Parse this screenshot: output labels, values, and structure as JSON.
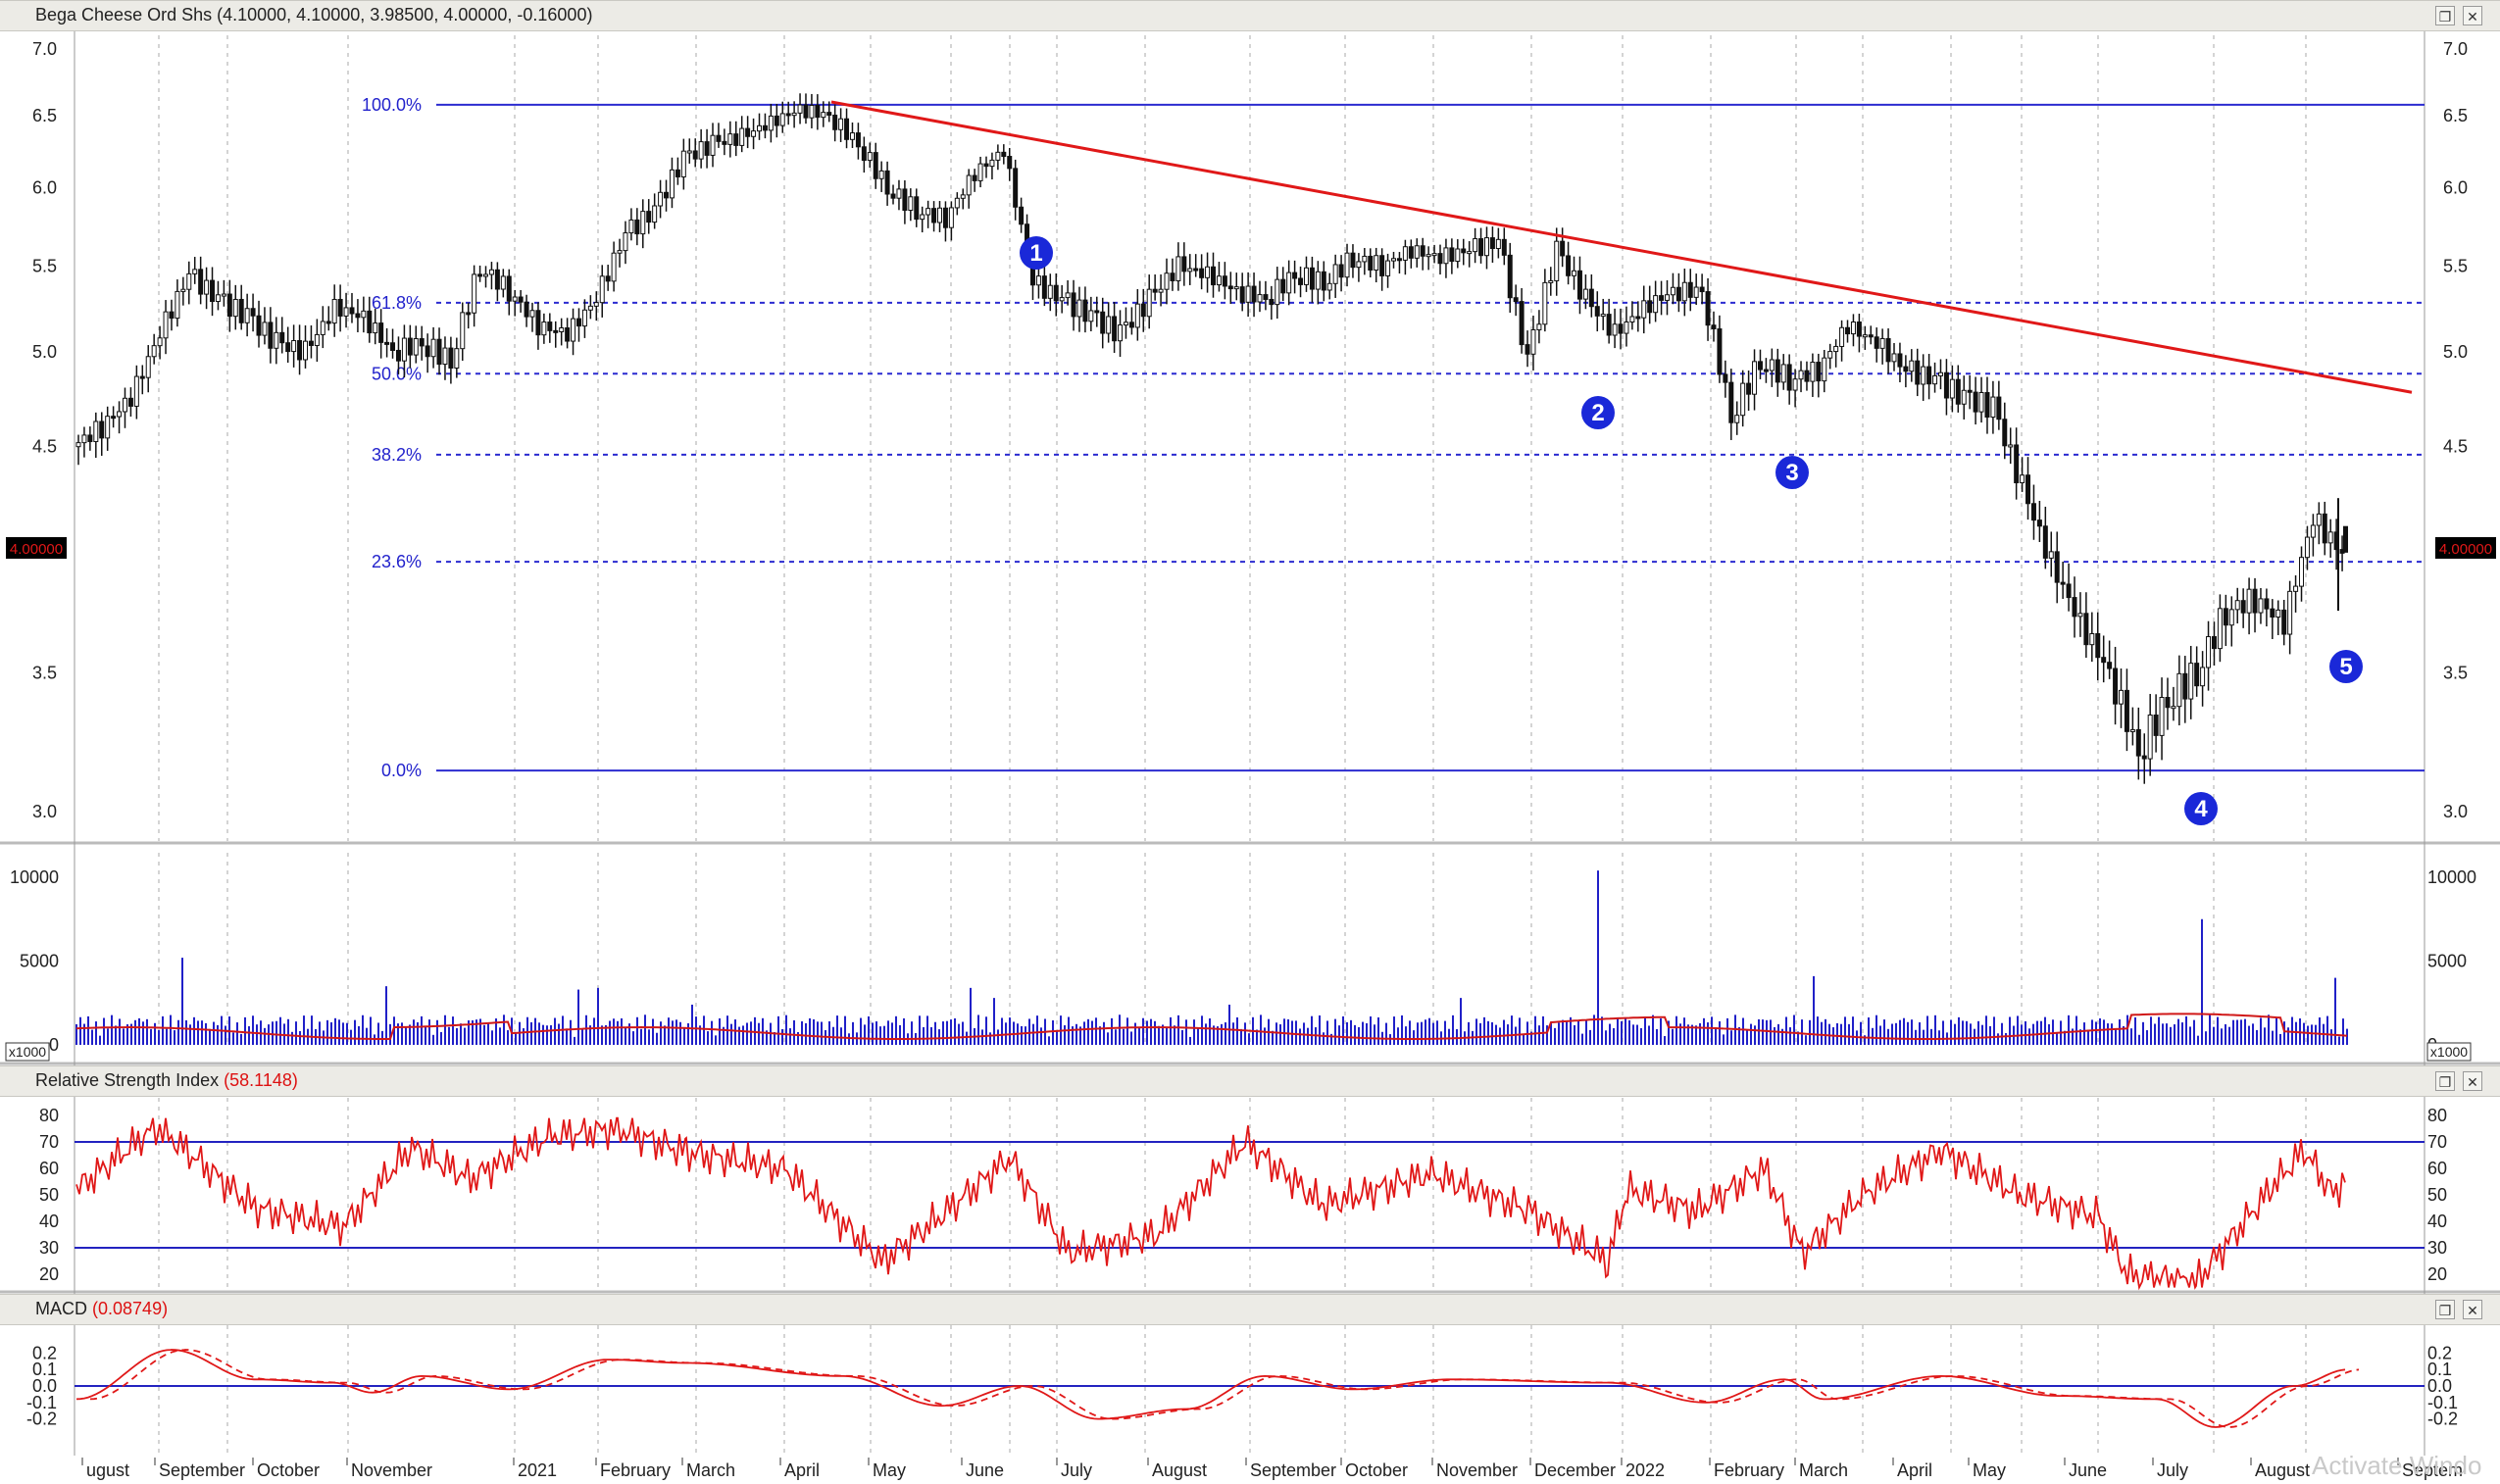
{
  "colors": {
    "candle": "#111111",
    "fib": "#2b2bd0",
    "trend": "#e01818",
    "volume": "#2020c8",
    "ma": "#d01818",
    "rsi": "#e01818",
    "band": "#2323c0",
    "marker": "#1a28d8",
    "price_box": "#000000",
    "price_text": "#e01818"
  },
  "price_panel": {
    "title": "Bega Cheese Ord Shs",
    "ohlc": "(4.10000, 4.10000, 3.98500, 4.00000, -0.16000)",
    "price_tag": "4.00000",
    "y_ticks": [
      "7.0",
      "6.5",
      "6.0",
      "5.5",
      "5.0",
      "4.5",
      "3.5",
      "3.0"
    ],
    "fib_labels": [
      "100.0%",
      "61.8%",
      "50.0%",
      "38.2%",
      "23.6%",
      "0.0%"
    ],
    "wave_markers": [
      "1",
      "2",
      "3",
      "4",
      "5"
    ]
  },
  "volume_panel": {
    "y_ticks": [
      "10000",
      "5000",
      "0"
    ],
    "scale_label": "x1000"
  },
  "rsi_panel": {
    "title": "Relative Strength Index",
    "value": "(58.1148)",
    "y_ticks": [
      "80",
      "70",
      "60",
      "50",
      "40",
      "30",
      "20"
    ]
  },
  "macd_panel": {
    "title": "MACD",
    "value": "(0.08749)",
    "y_ticks": [
      "0.2",
      "0.1",
      "0.0",
      "-0.1",
      "-0.2"
    ]
  },
  "x_axis": {
    "labels": [
      "ugust",
      "September",
      "October",
      "November",
      "2021",
      "February",
      "March",
      "April",
      "May",
      "June",
      "July",
      "August",
      "September",
      "October",
      "November",
      "December",
      "2022",
      "February",
      "March",
      "April",
      "May",
      "June",
      "July",
      "August",
      "Septem"
    ]
  },
  "watermark": "Activate Windo",
  "chart_data": {
    "type": "candlestick",
    "title": "Bega Cheese Ord Shs",
    "fib_levels": [
      {
        "label": "100.0%",
        "price": 6.58
      },
      {
        "label": "61.8%",
        "price": 5.28
      },
      {
        "label": "50.0%",
        "price": 4.88
      },
      {
        "label": "38.2%",
        "price": 4.46
      },
      {
        "label": "23.6%",
        "price": 3.96
      },
      {
        "label": "0.0%",
        "price": 3.14
      }
    ],
    "close_series": [
      4.5,
      4.6,
      4.75,
      5.1,
      5.45,
      5.3,
      5.2,
      5.05,
      5.0,
      5.25,
      5.2,
      5.0,
      5.05,
      4.95,
      5.5,
      5.35,
      5.15,
      5.1,
      5.3,
      5.7,
      5.85,
      6.2,
      6.3,
      6.35,
      6.45,
      6.55,
      6.5,
      6.3,
      6.0,
      5.85,
      5.8,
      6.1,
      6.25,
      5.4,
      5.3,
      5.2,
      5.1,
      5.3,
      5.5,
      5.45,
      5.35,
      5.3,
      5.45,
      5.4,
      5.55,
      5.5,
      5.6,
      5.55,
      5.6,
      5.65,
      4.95,
      5.6,
      5.3,
      5.1,
      5.25,
      5.35,
      5.35,
      4.65,
      4.95,
      4.85,
      4.9,
      5.15,
      5.05,
      4.9,
      4.85,
      4.75,
      4.7,
      4.3,
      3.95,
      3.7,
      3.5,
      3.2,
      3.4,
      3.5,
      3.75,
      3.8,
      3.7,
      4.15,
      4.0
    ],
    "trendline": [
      {
        "date": "April 2021",
        "price": 6.58
      },
      {
        "date": "September 2022",
        "price": 4.82
      }
    ],
    "volume_peak": 10500,
    "rsi_bands": [
      70,
      30
    ],
    "rsi_last": 58.1148,
    "macd_last": 0.08749
  }
}
